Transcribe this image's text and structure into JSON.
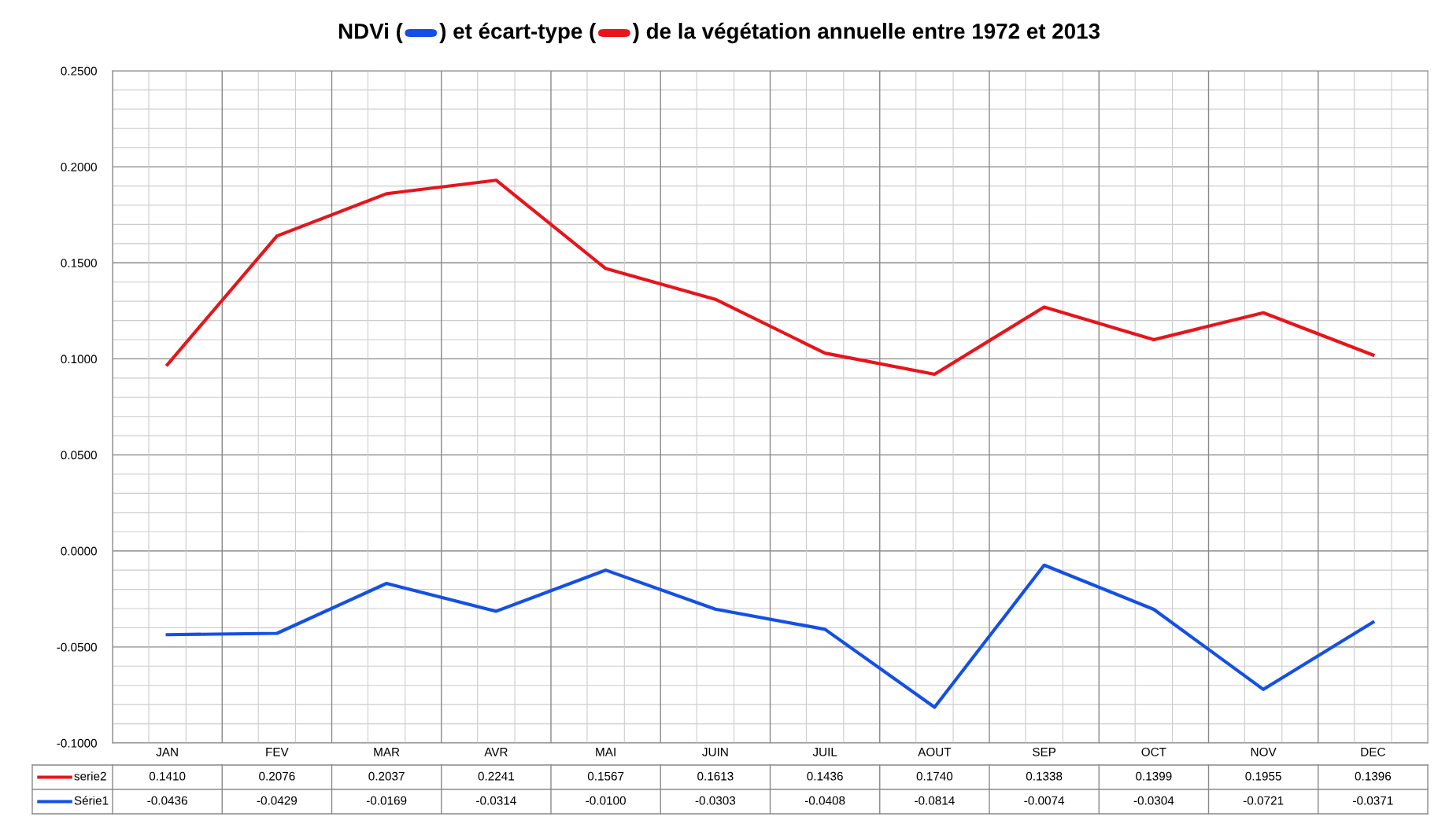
{
  "chart_data": {
    "type": "line",
    "title": "NDVi (      ) et écart-type (      ) de la végétation annuelle entre 1972 et 2013",
    "categories": [
      "JAN",
      "FEV",
      "MAR",
      "AVR",
      "MAI",
      "JUIN",
      "JUIL",
      "AOUT",
      "SEP",
      "OCT",
      "NOV",
      "DEC"
    ],
    "series": [
      {
        "name": "serie2",
        "color": "#e8141b",
        "values": [
          0.097,
          0.164,
          0.186,
          0.193,
          0.147,
          0.131,
          0.103,
          0.092,
          0.127,
          0.11,
          0.124,
          0.102
        ]
      },
      {
        "name": "Série1",
        "color": "#1450e6",
        "values": [
          -0.0436,
          -0.0429,
          -0.0169,
          -0.0314,
          -0.01,
          -0.0303,
          -0.0408,
          -0.0814,
          -0.0074,
          -0.0304,
          -0.0721,
          -0.0371
        ],
        "value_labels": [
          "-0.0436",
          "-0.0429",
          "-0.0169",
          "-0.0314",
          "-0.0100",
          "-0.0303",
          "-0.0408",
          "-0.0814",
          "-0.0074",
          "-0.0304",
          "-0.0721",
          "-0.0371"
        ]
      }
    ],
    "ylim": [
      -0.1,
      0.25
    ],
    "yticks": [
      {
        "value": -0.1,
        "label": "-0.1000"
      },
      {
        "value": -0.05,
        "label": "-0.0500"
      },
      {
        "value": 0.0,
        "label": "0.0000"
      },
      {
        "value": 0.05,
        "label": "0.0500"
      },
      {
        "value": 0.1,
        "label": "0.1000"
      },
      {
        "value": 0.15,
        "label": "0.1500"
      },
      {
        "value": 0.2,
        "label": "0.2000"
      },
      {
        "value": 0.25,
        "label": "0.2500"
      }
    ],
    "annotations": [
      "0.1410",
      "0.2076",
      "0.2037",
      "0.2241",
      "0.1567",
      "0.1613",
      "0.1436",
      "0.1740",
      "0.1338",
      "0.1399",
      "0.1955",
      "0.1396"
    ],
    "grid": true,
    "legend": "bottom",
    "marker": "none",
    "line_style": "solid"
  }
}
